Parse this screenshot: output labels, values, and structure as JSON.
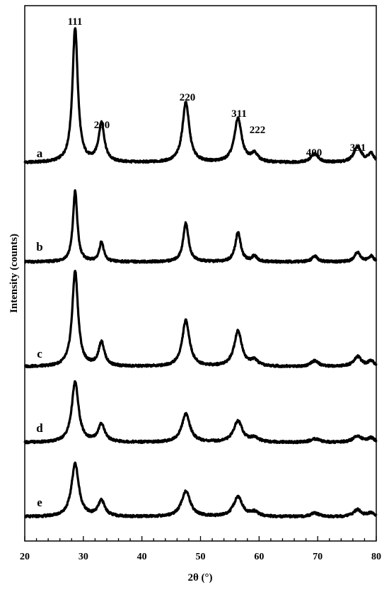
{
  "chart_data": {
    "type": "line",
    "xlabel": "2θ (°)",
    "ylabel": "Intensity (counts)",
    "xlim": [
      20,
      80
    ],
    "x_ticks": [
      "20",
      "30",
      "40",
      "50",
      "60",
      "70",
      "80"
    ],
    "y_ticks_visible": false,
    "grid": false,
    "legend": "none",
    "peak_labels": [
      {
        "text": "111",
        "x": 28.6
      },
      {
        "text": "200",
        "x": 33.1
      },
      {
        "text": "220",
        "x": 47.5
      },
      {
        "text": "311",
        "x": 56.4
      },
      {
        "text": "222",
        "x": 59.2
      },
      {
        "text": "400",
        "x": 69.5
      },
      {
        "text": "331",
        "x": 76.8
      }
    ],
    "series": [
      {
        "name": "a",
        "peaks": [
          {
            "x": 28.6,
            "height": 190,
            "width": 0.55
          },
          {
            "x": 33.1,
            "height": 55,
            "width": 0.6
          },
          {
            "x": 47.5,
            "height": 85,
            "width": 0.7
          },
          {
            "x": 56.4,
            "height": 62,
            "width": 0.75
          },
          {
            "x": 59.2,
            "height": 12,
            "width": 0.7
          },
          {
            "x": 69.5,
            "height": 12,
            "width": 0.8
          },
          {
            "x": 76.8,
            "height": 22,
            "width": 0.8
          },
          {
            "x": 79.1,
            "height": 12,
            "width": 0.6
          }
        ]
      },
      {
        "name": "b",
        "peaks": [
          {
            "x": 28.6,
            "height": 100,
            "width": 0.45
          },
          {
            "x": 33.1,
            "height": 28,
            "width": 0.45
          },
          {
            "x": 47.5,
            "height": 55,
            "width": 0.55
          },
          {
            "x": 56.4,
            "height": 42,
            "width": 0.55
          },
          {
            "x": 59.2,
            "height": 8,
            "width": 0.5
          },
          {
            "x": 69.5,
            "height": 8,
            "width": 0.6
          },
          {
            "x": 76.8,
            "height": 14,
            "width": 0.6
          },
          {
            "x": 79.1,
            "height": 8,
            "width": 0.5
          }
        ]
      },
      {
        "name": "c",
        "peaks": [
          {
            "x": 28.6,
            "height": 135,
            "width": 0.6
          },
          {
            "x": 33.1,
            "height": 34,
            "width": 0.6
          },
          {
            "x": 47.5,
            "height": 65,
            "width": 0.75
          },
          {
            "x": 56.4,
            "height": 50,
            "width": 0.8
          },
          {
            "x": 59.2,
            "height": 8,
            "width": 0.7
          },
          {
            "x": 69.5,
            "height": 8,
            "width": 0.8
          },
          {
            "x": 76.8,
            "height": 14,
            "width": 0.8
          },
          {
            "x": 79.1,
            "height": 8,
            "width": 0.6
          }
        ]
      },
      {
        "name": "d",
        "peaks": [
          {
            "x": 28.6,
            "height": 85,
            "width": 0.7
          },
          {
            "x": 33.1,
            "height": 25,
            "width": 0.7
          },
          {
            "x": 47.5,
            "height": 40,
            "width": 0.85
          },
          {
            "x": 56.4,
            "height": 30,
            "width": 0.9
          },
          {
            "x": 59.2,
            "height": 6,
            "width": 0.8
          },
          {
            "x": 69.5,
            "height": 5,
            "width": 0.9
          },
          {
            "x": 76.8,
            "height": 9,
            "width": 0.9
          },
          {
            "x": 79.1,
            "height": 6,
            "width": 0.7
          }
        ]
      },
      {
        "name": "e",
        "peaks": [
          {
            "x": 28.6,
            "height": 75,
            "width": 0.75
          },
          {
            "x": 33.1,
            "height": 22,
            "width": 0.7
          },
          {
            "x": 47.5,
            "height": 36,
            "width": 0.9
          },
          {
            "x": 56.4,
            "height": 28,
            "width": 0.9
          },
          {
            "x": 59.2,
            "height": 6,
            "width": 0.8
          },
          {
            "x": 69.5,
            "height": 5,
            "width": 0.9
          },
          {
            "x": 76.8,
            "height": 10,
            "width": 0.8
          },
          {
            "x": 79.1,
            "height": 5,
            "width": 0.7
          }
        ]
      }
    ]
  }
}
